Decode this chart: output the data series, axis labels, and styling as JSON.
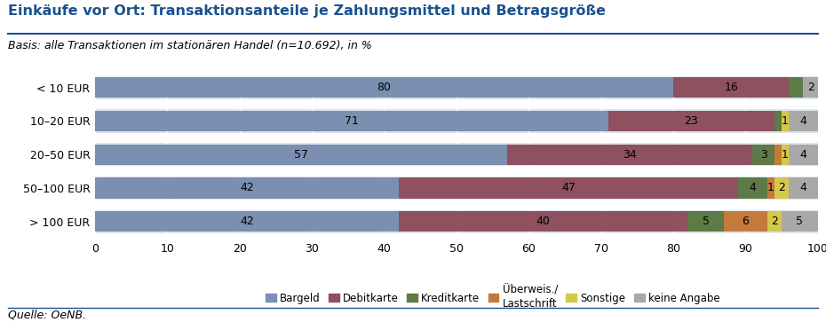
{
  "title": "Einkäufe vor Ort: Transaktionsanteile je Zahlungsmittel und Betragsgröße",
  "subtitle": "Basis: alle Transaktionen im stationären Handel (n=10.692), in %",
  "source": "Quelle: OeNB.",
  "categories": [
    "< 10 EUR",
    "10–20 EUR",
    "20–50 EUR",
    "50–100 EUR",
    "> 100 EUR"
  ],
  "series": [
    {
      "name": "Bargeld",
      "color": "#7b8fb0",
      "values": [
        80,
        71,
        57,
        42,
        42
      ]
    },
    {
      "name": "Debitkarte",
      "color": "#8f5060",
      "values": [
        16,
        23,
        34,
        47,
        40
      ]
    },
    {
      "name": "Kreditkarte",
      "color": "#5e7a46",
      "values": [
        2,
        1,
        3,
        4,
        5
      ]
    },
    {
      "name": "Überweis./\nLastschrift",
      "color": "#c47a3a",
      "values": [
        0,
        0,
        1,
        1,
        6
      ]
    },
    {
      "name": "Sonstige",
      "color": "#d4c84a",
      "values": [
        0,
        1,
        1,
        2,
        2
      ]
    },
    {
      "name": "keine Angabe",
      "color": "#a8a8a8",
      "values": [
        2,
        4,
        4,
        4,
        5
      ]
    }
  ],
  "bar_labels": [
    [
      80,
      16,
      null,
      null,
      null,
      2
    ],
    [
      71,
      23,
      null,
      null,
      1,
      4
    ],
    [
      57,
      34,
      3,
      null,
      1,
      4
    ],
    [
      42,
      47,
      4,
      1,
      2,
      4
    ],
    [
      42,
      40,
      5,
      6,
      2,
      5
    ]
  ],
  "xlim": [
    0,
    100
  ],
  "xticks": [
    0,
    10,
    20,
    30,
    40,
    50,
    60,
    70,
    80,
    90,
    100
  ],
  "title_color": "#1a5190",
  "fig_bg": "#ffffff",
  "plot_bg": "#ffffff",
  "row_bg": "#dde3ed",
  "label_fontsize": 9,
  "axis_fontsize": 9,
  "title_fontsize": 11.5,
  "subtitle_fontsize": 9,
  "legend_fontsize": 8.5
}
